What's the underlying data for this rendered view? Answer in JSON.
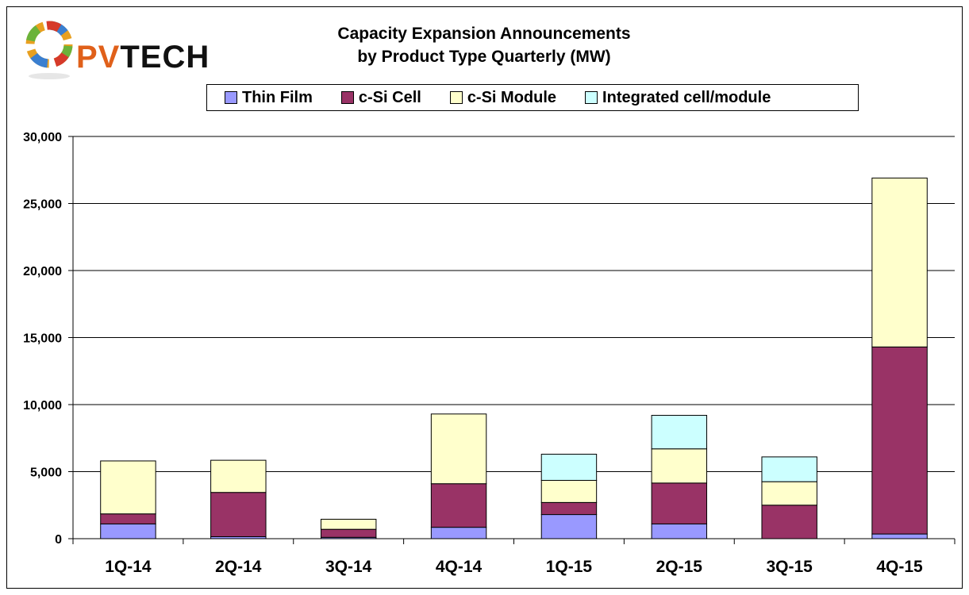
{
  "logo": {
    "brand_text": "PVTECH",
    "brand_prefix": "PV",
    "brand_suffix": "TECH"
  },
  "chart_data": {
    "type": "bar",
    "stacked": true,
    "title": "Capacity Expansion Announcements",
    "subtitle": "by  Product Type Quarterly (MW)",
    "categories": [
      "1Q-14",
      "2Q-14",
      "3Q-14",
      "4Q-14",
      "1Q-15",
      "2Q-15",
      "3Q-15",
      "4Q-15"
    ],
    "series": [
      {
        "name": "Thin Film",
        "color": "#9999ff",
        "values": [
          1100,
          150,
          100,
          850,
          1800,
          1100,
          0,
          350
        ]
      },
      {
        "name": "c-Si Cell",
        "color": "#993366",
        "values": [
          750,
          3300,
          600,
          3250,
          900,
          3050,
          2500,
          13950
        ]
      },
      {
        "name": "c-Si Module",
        "color": "#ffffcc",
        "values": [
          3950,
          2400,
          750,
          5200,
          1650,
          2550,
          1750,
          12600
        ]
      },
      {
        "name": "Integrated cell/module",
        "color": "#ccffff",
        "values": [
          0,
          0,
          0,
          0,
          1950,
          2500,
          1850,
          0
        ]
      }
    ],
    "ylim": [
      0,
      30000
    ],
    "yticks": [
      0,
      5000,
      10000,
      15000,
      20000,
      25000,
      30000
    ],
    "ytick_labels": [
      "0",
      "5,000",
      "10,000",
      "15,000",
      "20,000",
      "25,000",
      "30,000"
    ],
    "grid": true,
    "legend": "top",
    "xlabel": "",
    "ylabel": ""
  }
}
